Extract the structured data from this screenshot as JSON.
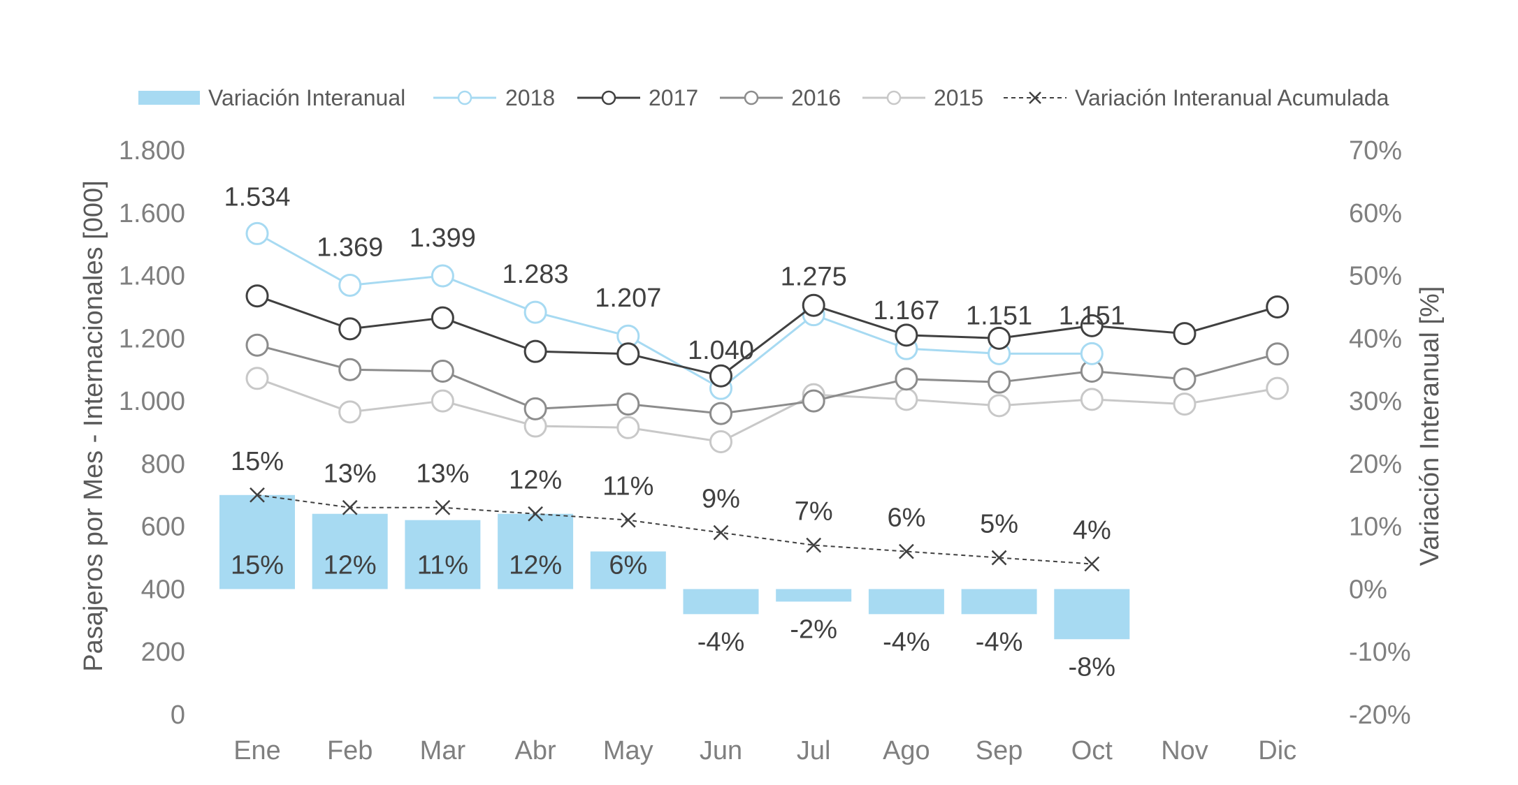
{
  "chart_data": {
    "type": "bar",
    "categories": [
      "Ene",
      "Feb",
      "Mar",
      "Abr",
      "May",
      "Jun",
      "Jul",
      "Ago",
      "Sep",
      "Oct",
      "Nov",
      "Dic"
    ],
    "y_left": {
      "label": "Pasajeros por Mes - Internacionales [000]",
      "ylim": [
        0,
        1800
      ],
      "ticks": [
        0,
        200,
        400,
        600,
        800,
        1000,
        1200,
        1400,
        1600,
        1800
      ],
      "tick_labels": [
        "0",
        "200",
        "400",
        "600",
        "800",
        "1.000",
        "1.200",
        "1.400",
        "1.600",
        "1.800"
      ]
    },
    "y_right": {
      "label": "Variación Interanual [%]",
      "ylim": [
        -20,
        70
      ],
      "ticks": [
        -20,
        -10,
        0,
        10,
        20,
        30,
        40,
        50,
        60,
        70
      ],
      "tick_labels": [
        "-20%",
        "-10%",
        "0%",
        "10%",
        "20%",
        "30%",
        "40%",
        "50%",
        "60%",
        "70%"
      ]
    },
    "legend": {
      "placement": "top",
      "items": [
        "Variación Interanual",
        "2018",
        "2017",
        "2016",
        "2015",
        "Variación Interanual Acumulada"
      ]
    },
    "series": [
      {
        "name": "Variación Interanual",
        "type": "bar",
        "axis": "right",
        "color": "#a7daf2",
        "values": [
          15,
          12,
          11,
          12,
          6,
          -4,
          -2,
          -4,
          -4,
          -8,
          null,
          null
        ],
        "labels": [
          "15%",
          "12%",
          "11%",
          "12%",
          "6%",
          "-4%",
          "-2%",
          "-4%",
          "-4%",
          "-8%",
          "",
          ""
        ]
      },
      {
        "name": "2018",
        "type": "line",
        "axis": "left",
        "color": "#a7daf2",
        "marker": "open-circle",
        "values": [
          1534,
          1369,
          1399,
          1283,
          1207,
          1040,
          1275,
          1167,
          1151,
          1151,
          null,
          null
        ],
        "labels": [
          "1.534",
          "1.369",
          "1.399",
          "1.283",
          "1.207",
          "1.040",
          "1.275",
          "1.167",
          "1.151",
          "1.151",
          "",
          ""
        ]
      },
      {
        "name": "2017",
        "type": "line",
        "axis": "left",
        "color": "#404040",
        "marker": "open-circle",
        "values": [
          1335,
          1230,
          1265,
          1158,
          1150,
          1080,
          1305,
          1210,
          1200,
          1240,
          1215,
          1300
        ]
      },
      {
        "name": "2016",
        "type": "line",
        "axis": "left",
        "color": "#8c8c8c",
        "marker": "open-circle",
        "values": [
          1178,
          1100,
          1095,
          975,
          990,
          960,
          1000,
          1070,
          1060,
          1095,
          1070,
          1150
        ]
      },
      {
        "name": "2015",
        "type": "line",
        "axis": "left",
        "color": "#c8c8c8",
        "marker": "open-circle",
        "values": [
          1072,
          965,
          1000,
          920,
          915,
          870,
          1020,
          1005,
          985,
          1005,
          990,
          1040
        ]
      },
      {
        "name": "Variación Interanual Acumulada",
        "type": "line",
        "axis": "right",
        "color": "#404040",
        "marker": "x",
        "dash": true,
        "values": [
          15,
          13,
          13,
          12,
          11,
          9,
          7,
          6,
          5,
          4,
          null,
          null
        ],
        "labels": [
          "15%",
          "13%",
          "13%",
          "12%",
          "11%",
          "9%",
          "7%",
          "6%",
          "5%",
          "4%",
          "",
          ""
        ]
      }
    ]
  }
}
